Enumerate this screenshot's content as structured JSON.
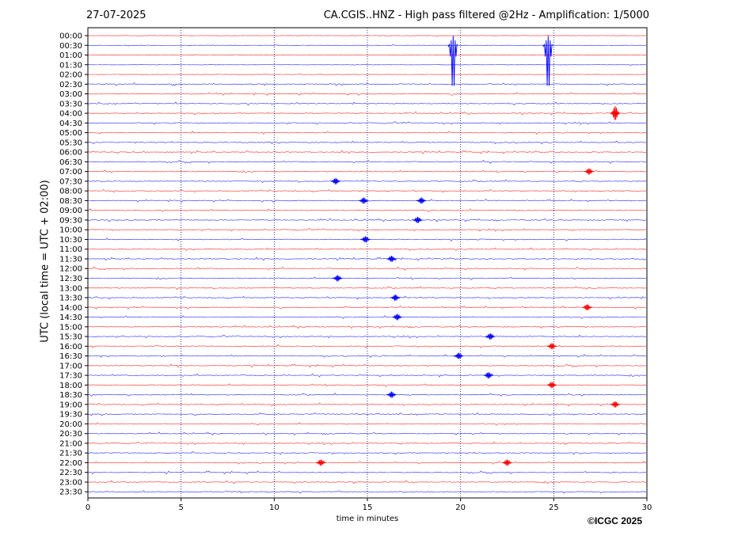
{
  "header": {
    "date": "27-07-2025",
    "title": "CA.CGIS..HNZ - High pass filtered @2Hz - Amplification: 1/5000"
  },
  "footer": {
    "copyright": "©ICGC 2025"
  },
  "chart_data": {
    "type": "line",
    "title": "CA.CGIS..HNZ - High pass filtered @2Hz - Amplification: 1/5000",
    "xlabel": "time in minutes",
    "ylabel": "UTC (local time = UTC + 02:00)",
    "xlim": [
      0,
      30
    ],
    "x_ticks": [
      "0",
      "5",
      "10",
      "15",
      "20",
      "25",
      "30"
    ],
    "y_ticks": [
      "00:00",
      "00:30",
      "01:00",
      "01:30",
      "02:00",
      "02:30",
      "03:00",
      "03:30",
      "04:00",
      "04:30",
      "05:00",
      "05:30",
      "06:00",
      "06:30",
      "07:00",
      "07:30",
      "08:00",
      "08:30",
      "09:00",
      "09:30",
      "10:00",
      "10:30",
      "11:00",
      "11:30",
      "12:00",
      "12:30",
      "13:00",
      "13:30",
      "14:00",
      "14:30",
      "15:00",
      "15:30",
      "16:00",
      "16:30",
      "17:00",
      "17:30",
      "18:00",
      "18:30",
      "19:00",
      "19:30",
      "20:00",
      "20:30",
      "21:00",
      "21:30",
      "22:00",
      "22:30",
      "23:00",
      "23:30"
    ],
    "grid": "vertical dotted at every 5 minutes",
    "colors": {
      "even_rows": "#ff0000",
      "odd_rows": "#0000ff",
      "grid": "#000080"
    },
    "events": [
      {
        "row": "00:30",
        "minute": 19.6,
        "amplitude": "large"
      },
      {
        "row": "00:30",
        "minute": 24.7,
        "amplitude": "large"
      },
      {
        "row": "04:00",
        "minute": 28.3,
        "amplitude": "medium"
      },
      {
        "row": "07:00",
        "minute": 26.9,
        "amplitude": "small"
      },
      {
        "row": "07:30",
        "minute": 13.3,
        "amplitude": "small"
      },
      {
        "row": "08:30",
        "minute": 14.8,
        "amplitude": "small"
      },
      {
        "row": "08:30",
        "minute": 17.9,
        "amplitude": "small"
      },
      {
        "row": "09:30",
        "minute": 17.7,
        "amplitude": "small"
      },
      {
        "row": "10:30",
        "minute": 14.9,
        "amplitude": "small"
      },
      {
        "row": "11:30",
        "minute": 16.3,
        "amplitude": "small"
      },
      {
        "row": "12:30",
        "minute": 13.4,
        "amplitude": "small"
      },
      {
        "row": "13:30",
        "minute": 16.5,
        "amplitude": "small"
      },
      {
        "row": "14:00",
        "minute": 26.8,
        "amplitude": "small"
      },
      {
        "row": "14:30",
        "minute": 16.6,
        "amplitude": "small"
      },
      {
        "row": "15:30",
        "minute": 21.6,
        "amplitude": "small"
      },
      {
        "row": "16:00",
        "minute": 24.9,
        "amplitude": "small"
      },
      {
        "row": "16:30",
        "minute": 19.9,
        "amplitude": "small"
      },
      {
        "row": "17:30",
        "minute": 21.5,
        "amplitude": "small"
      },
      {
        "row": "18:00",
        "minute": 24.9,
        "amplitude": "small"
      },
      {
        "row": "18:30",
        "minute": 16.3,
        "amplitude": "small"
      },
      {
        "row": "19:00",
        "minute": 28.3,
        "amplitude": "small"
      },
      {
        "row": "22:00",
        "minute": 12.5,
        "amplitude": "small"
      },
      {
        "row": "22:00",
        "minute": 22.5,
        "amplitude": "small"
      }
    ]
  }
}
